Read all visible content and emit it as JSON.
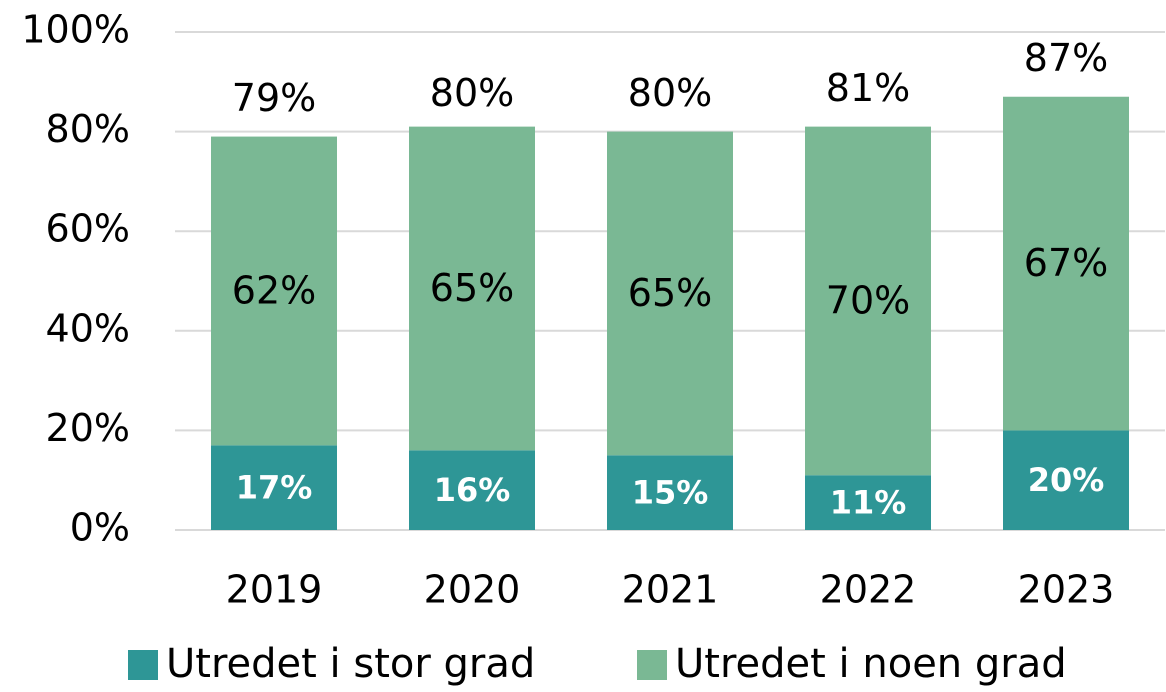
{
  "chart_data": {
    "type": "stacked-bar",
    "categories": [
      "2019",
      "2020",
      "2021",
      "2022",
      "2023"
    ],
    "series": [
      {
        "name": "Utredet i stor grad",
        "color": "#2e9696",
        "values": [
          17,
          16,
          15,
          11,
          20
        ],
        "value_labels": [
          "17%",
          "16%",
          "15%",
          "11%",
          "20%"
        ]
      },
      {
        "name": "Utredet i noen grad",
        "color": "#7ab894",
        "values": [
          62,
          65,
          65,
          70,
          67
        ],
        "value_labels": [
          "62%",
          "65%",
          "65%",
          "70%",
          "67%"
        ]
      }
    ],
    "totals": {
      "values": [
        79,
        80,
        80,
        81,
        87
      ],
      "value_labels": [
        "79%",
        "80%",
        "80%",
        "81%",
        "87%"
      ]
    },
    "ylim": [
      0,
      100
    ],
    "yticks": [
      {
        "value": 0,
        "label": "0%"
      },
      {
        "value": 20,
        "label": "20%"
      },
      {
        "value": 40,
        "label": "40%"
      },
      {
        "value": 60,
        "label": "60%"
      },
      {
        "value": 80,
        "label": "80%"
      },
      {
        "value": 100,
        "label": "100%"
      }
    ],
    "grid": true,
    "legend": "bottom"
  }
}
